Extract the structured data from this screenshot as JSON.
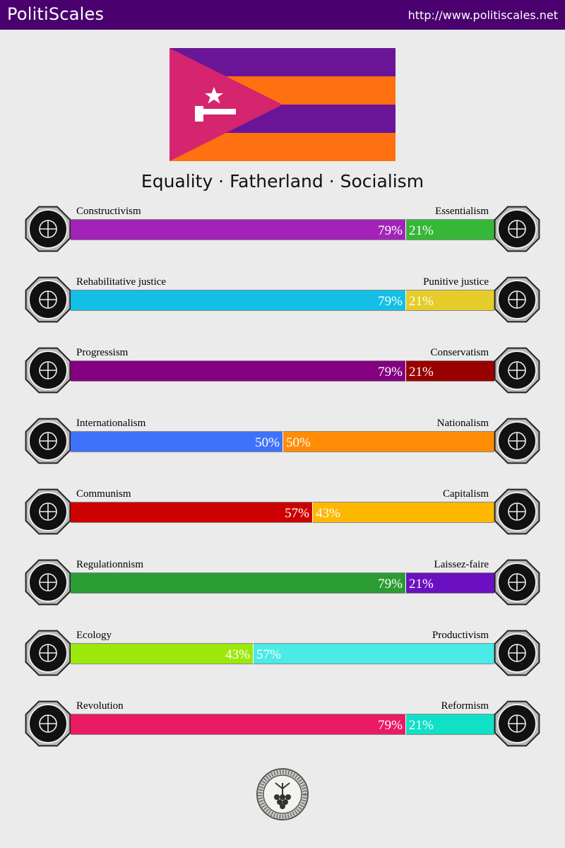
{
  "header": {
    "brand": "PolitiScales",
    "url": "http://www.politiscales.net"
  },
  "flag": {
    "stripe_colors": [
      "#6a1598",
      "#ff7010",
      "#6a1598",
      "#ff7010"
    ],
    "triangle_color": "#d5256f",
    "emblem": "star-and-hammer",
    "emblem_color": "#ffffff"
  },
  "motto": "Equality · Fatherland · Socialism",
  "axes": [
    {
      "left_label": "Constructivism",
      "right_label": "Essentialism",
      "left_value": 79,
      "right_value": 21,
      "left_text": "79%",
      "right_text": "21%",
      "left_color": "#a323b8",
      "right_color": "#36b737",
      "left_icon": "eye-icon",
      "right_icon": "flower-icon"
    },
    {
      "left_label": "Rehabilitative justice",
      "right_label": "Punitive justice",
      "left_value": 79,
      "right_value": 21,
      "left_text": "79%",
      "right_text": "21%",
      "left_color": "#13bfe4",
      "right_color": "#e6cc28",
      "left_icon": "handshake-icon",
      "right_icon": "prison-bars-icon"
    },
    {
      "left_label": "Progressism",
      "right_label": "Conservatism",
      "left_value": 79,
      "right_value": 21,
      "left_text": "79%",
      "right_text": "21%",
      "left_color": "#830080",
      "right_color": "#990000",
      "left_icon": "torch-icon",
      "right_icon": "fountain-pen-icon"
    },
    {
      "left_label": "Internationalism",
      "right_label": "Nationalism",
      "left_value": 50,
      "right_value": 50,
      "left_text": "50%",
      "right_text": "50%",
      "left_color": "#3f72fb",
      "right_color": "#ff8c04",
      "left_icon": "globe-icon",
      "right_icon": "flag-icon"
    },
    {
      "left_label": "Communism",
      "right_label": "Capitalism",
      "left_value": 57,
      "right_value": 43,
      "left_text": "57%",
      "right_text": "43%",
      "left_color": "#cc0000",
      "right_color": "#ffb700",
      "left_icon": "hammer-sickle-icon",
      "right_icon": "money-bag-icon"
    },
    {
      "left_label": "Regulationnism",
      "right_label": "Laissez-faire",
      "left_value": 79,
      "right_value": 21,
      "left_text": "79%",
      "right_text": "21%",
      "left_color": "#2b9c34",
      "right_color": "#6a10c2",
      "left_icon": "ruler-icon",
      "right_icon": "butterfly-icon"
    },
    {
      "left_label": "Ecology",
      "right_label": "Productivism",
      "left_value": 43,
      "right_value": 57,
      "left_text": "43%",
      "right_text": "57%",
      "left_color": "#9ce80b",
      "right_color": "#4aeae6",
      "left_icon": "sprout-icon",
      "right_icon": "gear-icon"
    },
    {
      "left_label": "Revolution",
      "right_label": "Reformism",
      "left_value": 79,
      "right_value": 21,
      "left_text": "79%",
      "right_text": "21%",
      "left_color": "#ea1a63",
      "right_color": "#10e0c6",
      "left_icon": "fist-icon",
      "right_icon": "ballot-box-icon"
    }
  ],
  "footer": {
    "seal_icon": "seal-icon"
  }
}
